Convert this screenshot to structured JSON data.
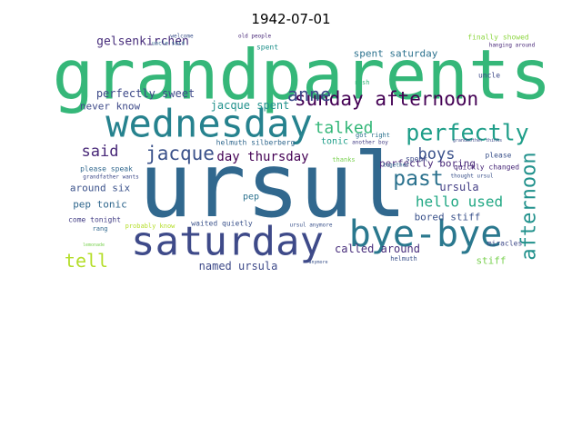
{
  "figure": {
    "title": "1942-07-01"
  },
  "wordcloud": {
    "words": [
      {
        "text": "grandparents",
        "color": "#35b779"
      },
      {
        "text": "ursul",
        "color": "#31688e"
      },
      {
        "text": "wednesday",
        "color": "#26828e"
      },
      {
        "text": "saturday",
        "color": "#3e4a89"
      },
      {
        "text": "bye-bye",
        "color": "#2a788e"
      },
      {
        "text": "perfectly",
        "color": "#1f9e89"
      },
      {
        "text": "sunday afternoon",
        "color": "#440154"
      },
      {
        "text": "afternoon",
        "color": "#21918c"
      },
      {
        "text": "jacque",
        "color": "#3b528b"
      },
      {
        "text": "past",
        "color": "#2c728e"
      },
      {
        "text": "talked",
        "color": "#35b779"
      },
      {
        "text": "said",
        "color": "#482878"
      },
      {
        "text": "tell",
        "color": "#b5de2b"
      },
      {
        "text": "anne",
        "color": "#3e4a89"
      },
      {
        "text": "gelsenkirchen",
        "color": "#472d7b"
      },
      {
        "text": "boys",
        "color": "#3b528b"
      },
      {
        "text": "day thursday",
        "color": "#440154"
      },
      {
        "text": "hello used",
        "color": "#22a884"
      },
      {
        "text": "perfectly sweet",
        "color": "#3e4a89"
      },
      {
        "text": "perfectly boring",
        "color": "#482878"
      },
      {
        "text": "spent saturday",
        "color": "#2c728e"
      },
      {
        "text": "jacque spent",
        "color": "#21918c"
      },
      {
        "text": "never know",
        "color": "#3e4a89"
      },
      {
        "text": "around six",
        "color": "#3b528b"
      },
      {
        "text": "pep tonic",
        "color": "#31688e"
      },
      {
        "text": "ursula",
        "color": "#433e85"
      },
      {
        "text": "bored stiff",
        "color": "#3b528b"
      },
      {
        "text": "called around",
        "color": "#472d7b"
      },
      {
        "text": "named ursula",
        "color": "#3e4a89"
      },
      {
        "text": "tonic",
        "color": "#1f9e89"
      },
      {
        "text": "stiff",
        "color": "#7ad151"
      },
      {
        "text": "come tonight",
        "color": "#433e85"
      },
      {
        "text": "please speak",
        "color": "#31688e"
      },
      {
        "text": "waited quietly",
        "color": "#3b528b"
      },
      {
        "text": "pep",
        "color": "#2c728e"
      },
      {
        "text": "helmuth silberberg",
        "color": "#31688e"
      },
      {
        "text": "quickly changed",
        "color": "#482878"
      },
      {
        "text": "finally showed",
        "color": "#8fd744"
      },
      {
        "text": "spent",
        "color": "#21918c"
      },
      {
        "text": "miracles",
        "color": "#3e4a89"
      },
      {
        "text": "rang",
        "color": "#31688e"
      },
      {
        "text": "welcome",
        "color": "#3b528b"
      },
      {
        "text": "old people",
        "color": "#482878"
      },
      {
        "text": "uncle said",
        "color": "#31688e"
      },
      {
        "text": "thought ursul",
        "color": "#3b528b"
      },
      {
        "text": "got right",
        "color": "#2c728e"
      },
      {
        "text": "rush",
        "color": "#35b779"
      },
      {
        "text": "uncle",
        "color": "#3e4a89"
      },
      {
        "text": "hanging around",
        "color": "#482878"
      },
      {
        "text": "speak",
        "color": "#3e4a89"
      },
      {
        "text": "please",
        "color": "#3b528b"
      },
      {
        "text": "go together",
        "color": "#31688e"
      },
      {
        "text": "another boy",
        "color": "#433e85"
      },
      {
        "text": "grandfather wants",
        "color": "#3e4a89"
      },
      {
        "text": "ursul anymore",
        "color": "#3b528b"
      },
      {
        "text": "probably know",
        "color": "#b5de2b"
      },
      {
        "text": "thanks",
        "color": "#7ad151"
      },
      {
        "text": "helmuth",
        "color": "#3b528b"
      },
      {
        "text": "anymore",
        "color": "#3b528b"
      },
      {
        "text": "grandmother thinks",
        "color": "#3e4a89"
      },
      {
        "text": "lemonade",
        "color": "#7ad151"
      }
    ]
  }
}
